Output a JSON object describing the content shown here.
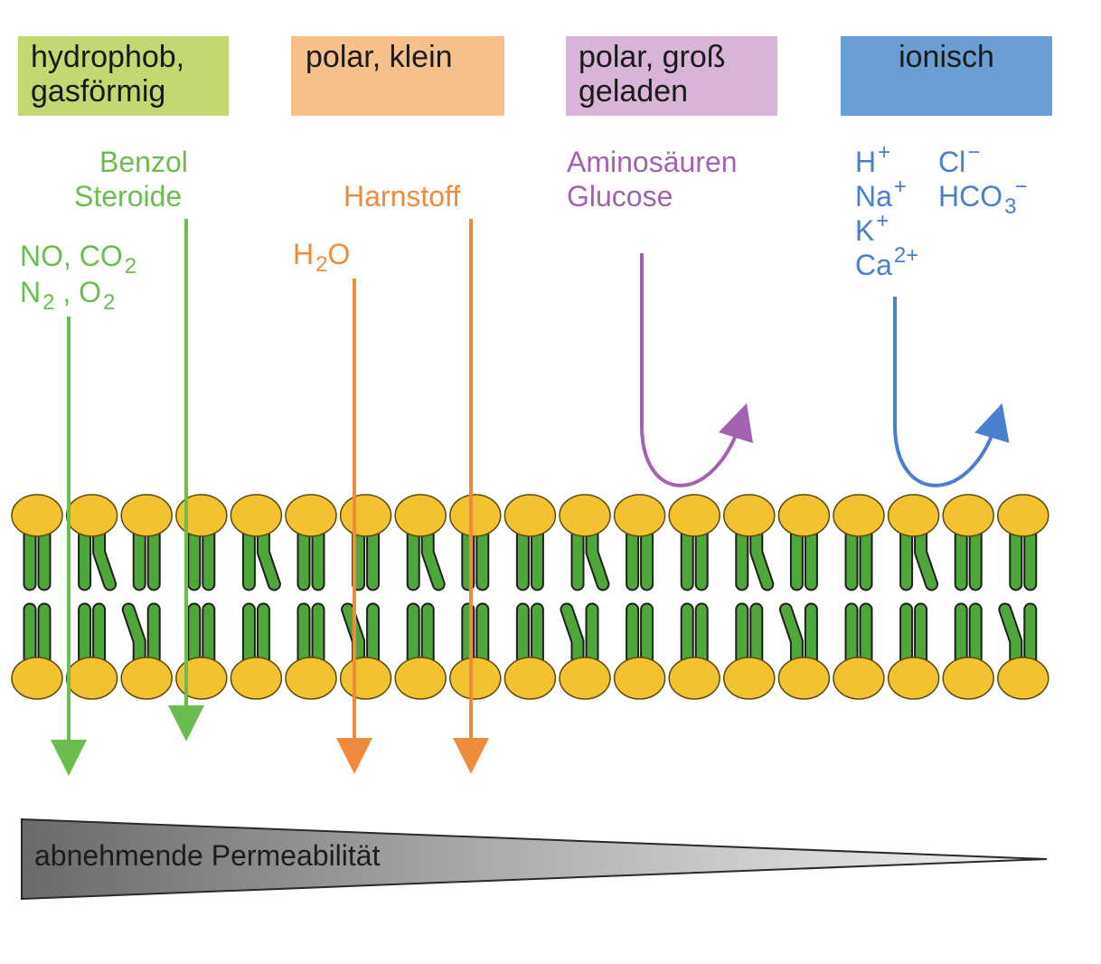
{
  "headers": {
    "hydrophobic": {
      "line1": "hydrophob,",
      "line2": "gasförmig",
      "color": "#c2d870"
    },
    "polar_small": {
      "line1": "polar, klein",
      "color": "#f6c08c"
    },
    "polar_large": {
      "line1": "polar, groß",
      "line2": "geladen",
      "color": "#d7b4d8"
    },
    "ionic": {
      "line1": "ionisch",
      "color": "#6b9fd4"
    }
  },
  "molecules": {
    "benzol": "Benzol",
    "steroide": "Steroide",
    "gases": {
      "no_co": "NO, CO",
      "co_sub": "2",
      "n": "N",
      "n_sub": "2",
      "o_sep": " , O",
      "o_sub": "2"
    },
    "harnstoff": "Harnstoff",
    "water": {
      "h": "H",
      "h_sub": "2",
      "o": "O"
    },
    "aminosaeuren": "Aminosäuren",
    "glucose": "Glucose",
    "ions": {
      "h": "H",
      "h_sup": "+",
      "cl": "Cl",
      "cl_sup": "−",
      "na": "Na",
      "na_sup": "+",
      "hco": "HCO",
      "hco_sub": "3",
      "hco_sup": "−",
      "k": "K",
      "k_sup": "+",
      "ca": "Ca",
      "ca_sup": "2+"
    }
  },
  "permeability_label": "abnehmende Permeabilität",
  "colors": {
    "green": "#6cbd4f",
    "orange": "#ef8c3b",
    "purple": "#a362b0",
    "blue": "#4a7fcd",
    "lipid_head": "#f2c230",
    "lipid_tail": "#4fa63a"
  },
  "membrane": {
    "lipid_count_per_leaflet": 19
  }
}
